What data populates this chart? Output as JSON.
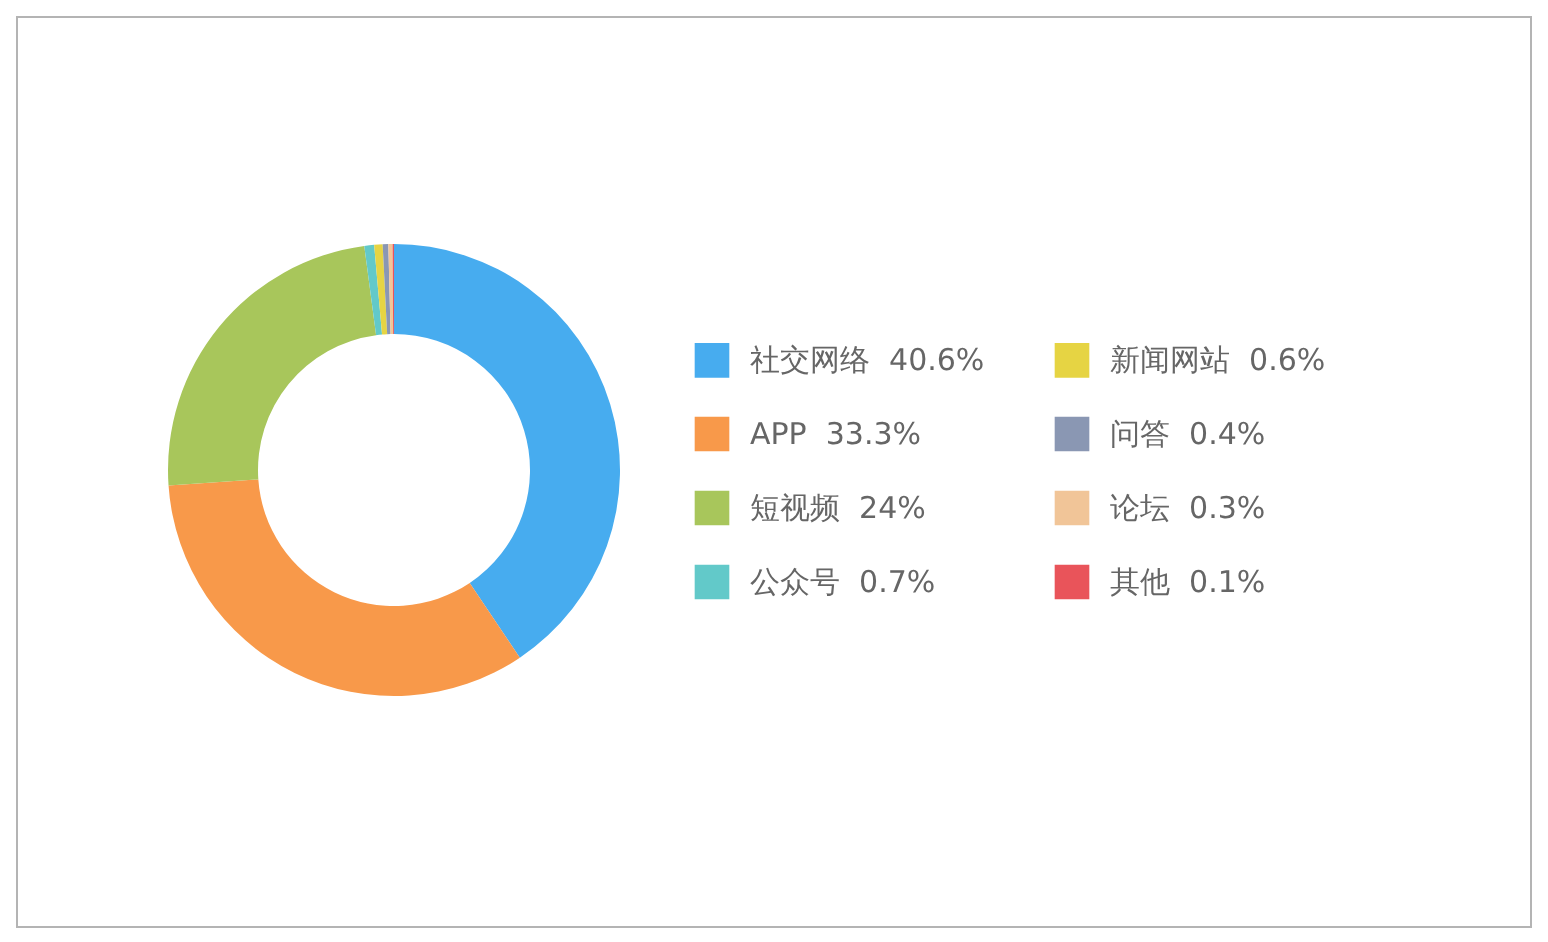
{
  "chart_data": {
    "type": "donut",
    "categories": [
      "社交网络",
      "APP",
      "短视频",
      "公众号",
      "新闻网站",
      "问答",
      "论坛",
      "其他"
    ],
    "values": [
      40.6,
      33.3,
      24,
      0.7,
      0.6,
      0.4,
      0.3,
      0.1
    ],
    "value_labels": [
      "40.6%",
      "33.3%",
      "24%",
      "0.7%",
      "0.6%",
      "0.4%",
      "0.3%",
      "0.1%"
    ],
    "colors": [
      "#47acef",
      "#f8994a",
      "#a8c65b",
      "#62c9c9",
      "#e6d443",
      "#8a97b3",
      "#f1c598",
      "#e9545a"
    ],
    "legend": "right"
  }
}
